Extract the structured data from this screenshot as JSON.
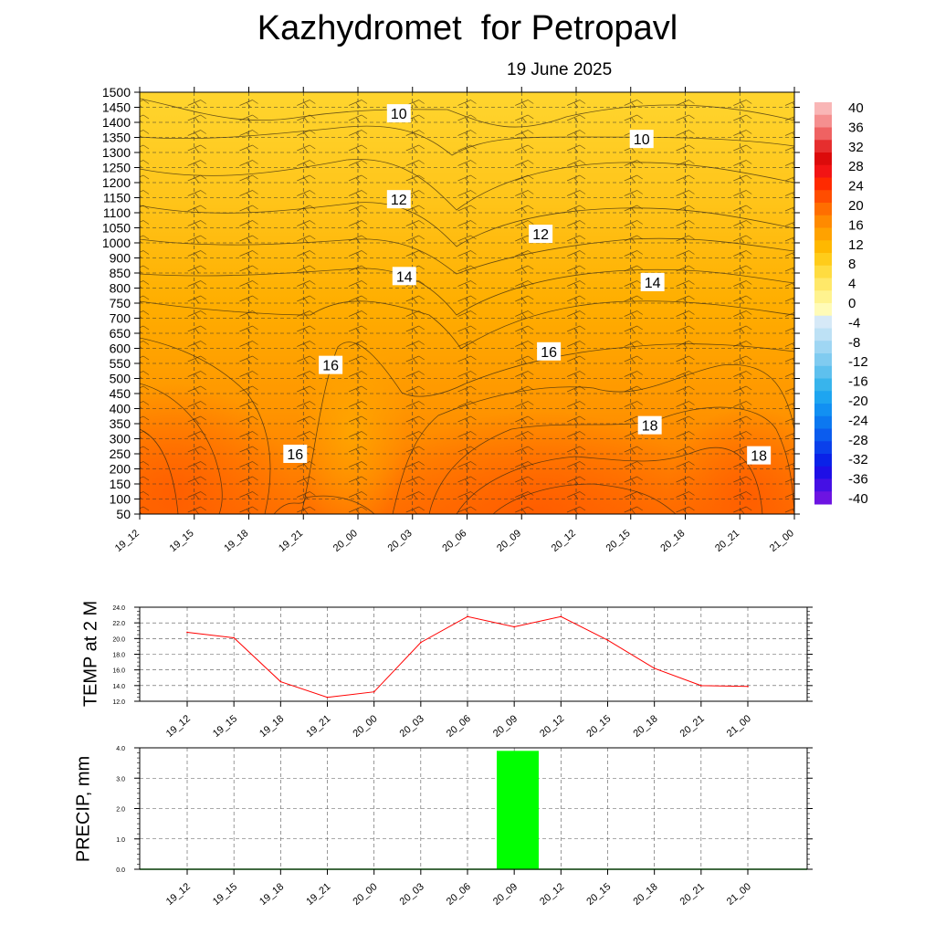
{
  "header": {
    "title": "Kazhydromet  for Petropavl",
    "date": "19 June 2025"
  },
  "chart_data": [
    {
      "type": "heatmap",
      "ylim": [
        50,
        1500
      ],
      "y_ticks": [
        50,
        100,
        150,
        200,
        250,
        300,
        350,
        400,
        450,
        500,
        550,
        600,
        650,
        700,
        750,
        800,
        850,
        900,
        1000,
        1050,
        1100,
        1150,
        1200,
        1250,
        1300,
        1350,
        1400,
        1450,
        1500
      ],
      "x_ticks": [
        "19_12",
        "19_15",
        "19_18",
        "19_21",
        "20_00",
        "20_03",
        "20_06",
        "20_09",
        "20_12",
        "20_15",
        "20_18",
        "20_21",
        "21_00"
      ],
      "contour_labels": [
        {
          "text": "10",
          "t": 4.75,
          "h": 1430
        },
        {
          "text": "10",
          "t": 9.2,
          "h": 1345
        },
        {
          "text": "12",
          "t": 4.75,
          "h": 1145
        },
        {
          "text": "12",
          "t": 7.35,
          "h": 1030
        },
        {
          "text": "14",
          "t": 4.85,
          "h": 840
        },
        {
          "text": "14",
          "t": 9.4,
          "h": 820
        },
        {
          "text": "16",
          "t": 3.5,
          "h": 545
        },
        {
          "text": "16",
          "t": 7.5,
          "h": 590
        },
        {
          "text": "16",
          "t": 2.85,
          "h": 250
        },
        {
          "text": "18",
          "t": 9.35,
          "h": 345
        },
        {
          "text": "18",
          "t": 11.35,
          "h": 245
        }
      ],
      "colorbar": {
        "labels": [
          "40",
          "36",
          "32",
          "28",
          "24",
          "20",
          "16",
          "12",
          "8",
          "4",
          "0",
          "-4",
          "-8",
          "-12",
          "-16",
          "-20",
          "-24",
          "-28",
          "-32",
          "-36",
          "-40"
        ],
        "colors": [
          "#f9b6b6",
          "#f58f8f",
          "#ef6262",
          "#e62e2e",
          "#dc0b0b",
          "#f21414",
          "#ff2a00",
          "#ff4d00",
          "#ff6e00",
          "#ff8a00",
          "#ffa200",
          "#ffb800",
          "#ffcc1a",
          "#ffdc40",
          "#ffe869",
          "#fff38f",
          "#fffbb7",
          "#d6e9f7",
          "#bde1f5",
          "#9fd6f3",
          "#80cbf0",
          "#5ec0ee",
          "#38b4ec",
          "#1ea5f0",
          "#1290f2",
          "#0c78f0",
          "#0b5cee",
          "#0a40eb",
          "#0a22e8",
          "#1e0fe6",
          "#4510e4",
          "#6d14e2"
        ]
      }
    },
    {
      "type": "line",
      "ylabel": "TEMP at 2 M",
      "categories": [
        "19_12",
        "19_15",
        "19_18",
        "19_21",
        "20_00",
        "20_03",
        "20_06",
        "20_09",
        "20_12",
        "20_15",
        "20_18",
        "20_21",
        "21_00"
      ],
      "values": [
        20.8,
        20.1,
        14.5,
        12.5,
        13.2,
        19.5,
        22.8,
        21.5,
        22.8,
        19.8,
        16.2,
        14.0,
        13.9
      ],
      "ylim": [
        12.0,
        24.0
      ],
      "yticks": [
        "12.0",
        "14.0",
        "16.0",
        "18.0",
        "20.0",
        "22.0",
        "24.0"
      ],
      "color": "#ff0000"
    },
    {
      "type": "bar",
      "ylabel": "PRECIP, mm",
      "categories": [
        "19_12",
        "19_15",
        "19_18",
        "19_21",
        "20_00",
        "20_03",
        "20_06",
        "20_09",
        "20_12",
        "20_15",
        "20_18",
        "20_21",
        "21_00"
      ],
      "values": [
        0,
        0,
        0,
        0,
        0,
        0,
        0,
        3.9,
        0,
        0,
        0,
        0,
        0
      ],
      "ylim": [
        0.0,
        4.0
      ],
      "yticks": [
        "0.0",
        "1.0",
        "2.0",
        "3.0",
        "4.0"
      ],
      "color": "#00ff00"
    }
  ]
}
